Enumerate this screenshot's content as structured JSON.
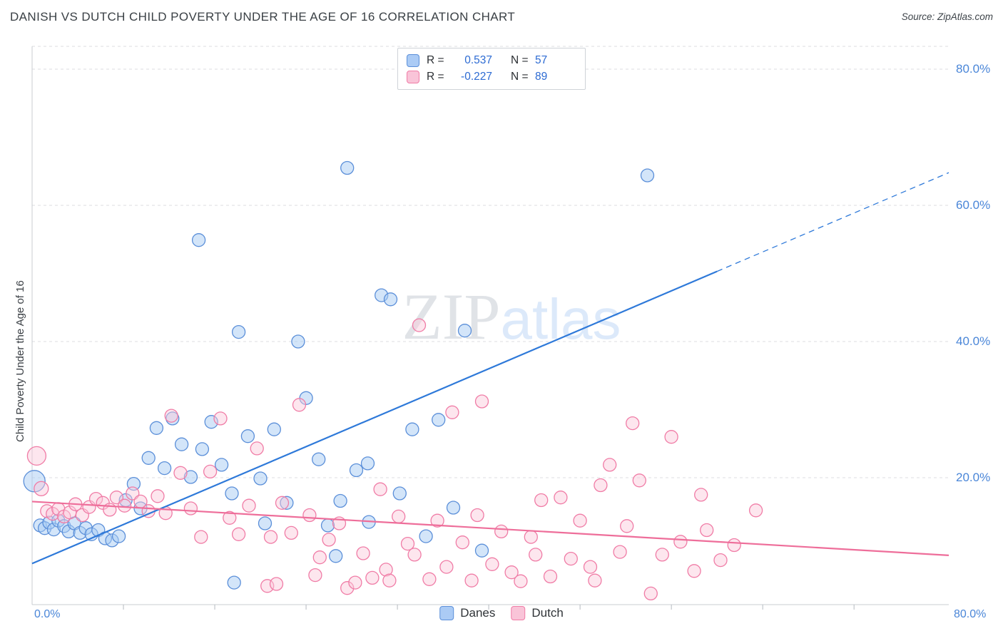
{
  "header": {
    "title": "DANISH VS DUTCH CHILD POVERTY UNDER THE AGE OF 16 CORRELATION CHART",
    "source": "Source: ZipAtlas.com"
  },
  "watermark": {
    "part1": "ZIP",
    "part2": "atlas"
  },
  "axes": {
    "y_label": "Child Poverty Under the Age of 16",
    "y_ticks": [
      "80.0%",
      "60.0%",
      "40.0%",
      "20.0%"
    ],
    "x_min_label": "0.0%",
    "x_max_label": "80.0%"
  },
  "legend_box": {
    "r_label": "R =",
    "n_label": "N ="
  },
  "chart_data": {
    "type": "scatter",
    "title": "Danish vs Dutch Child Poverty Under the Age of 16 Correlation Chart",
    "ylabel": "Child Poverty Under the Age of 16",
    "xlim": [
      0,
      80.3
    ],
    "ylim": [
      0,
      83.5
    ],
    "grid_y_values": [
      20,
      40,
      60,
      80
    ],
    "x_tick_values": [
      8,
      16,
      24,
      32,
      40,
      48,
      56,
      64,
      72
    ],
    "legend_position": "bottom-center",
    "grid": "dashed-horizontal",
    "series": [
      {
        "name": "Danes",
        "R": "0.537",
        "N": "57",
        "stroke": "#5b8fd9",
        "fill": "rgba(168, 204, 244, 0.5)",
        "points": [
          [
            0.2,
            19.5,
            15
          ],
          [
            0.7,
            13.0
          ],
          [
            1.1,
            12.6
          ],
          [
            1.5,
            13.4
          ],
          [
            1.9,
            12.4
          ],
          [
            2.3,
            13.7
          ],
          [
            2.8,
            12.9
          ],
          [
            3.2,
            12.1
          ],
          [
            3.7,
            13.3
          ],
          [
            4.2,
            11.9
          ],
          [
            4.7,
            12.6
          ],
          [
            5.2,
            11.7
          ],
          [
            5.8,
            12.3
          ],
          [
            6.4,
            11.1
          ],
          [
            7.0,
            10.8
          ],
          [
            7.6,
            11.4
          ],
          [
            8.2,
            16.7
          ],
          [
            8.9,
            19.1
          ],
          [
            9.5,
            15.5
          ],
          [
            10.2,
            22.9
          ],
          [
            10.9,
            27.3
          ],
          [
            11.6,
            21.4
          ],
          [
            12.3,
            28.7
          ],
          [
            13.1,
            24.9
          ],
          [
            13.9,
            20.1
          ],
          [
            14.6,
            54.9
          ],
          [
            14.9,
            24.2
          ],
          [
            15.7,
            28.2
          ],
          [
            16.6,
            21.9
          ],
          [
            17.5,
            17.7
          ],
          [
            17.7,
            4.6
          ],
          [
            18.1,
            41.4
          ],
          [
            18.9,
            26.1
          ],
          [
            20.0,
            19.9
          ],
          [
            20.4,
            13.3
          ],
          [
            21.2,
            27.1
          ],
          [
            22.3,
            16.3
          ],
          [
            23.3,
            40.0
          ],
          [
            24.0,
            31.7
          ],
          [
            25.1,
            22.7
          ],
          [
            25.9,
            13.0
          ],
          [
            26.6,
            8.5
          ],
          [
            27.0,
            16.6
          ],
          [
            27.6,
            65.5
          ],
          [
            28.4,
            21.1
          ],
          [
            29.4,
            22.1
          ],
          [
            29.5,
            13.5
          ],
          [
            30.6,
            46.8
          ],
          [
            31.4,
            46.2
          ],
          [
            32.2,
            17.7
          ],
          [
            33.3,
            27.1
          ],
          [
            34.5,
            11.4
          ],
          [
            35.6,
            28.5
          ],
          [
            36.9,
            15.6
          ],
          [
            37.9,
            41.6
          ],
          [
            39.4,
            9.3
          ],
          [
            53.9,
            64.4
          ]
        ]
      },
      {
        "name": "Dutch",
        "R": "-0.227",
        "N": "89",
        "stroke": "#f07ca6",
        "fill": "rgba(250, 199, 217, 0.45)",
        "points": [
          [
            0.4,
            23.2,
            13
          ],
          [
            0.8,
            18.4,
            10
          ],
          [
            1.3,
            15.1
          ],
          [
            1.8,
            14.7
          ],
          [
            2.3,
            15.4
          ],
          [
            2.8,
            14.3
          ],
          [
            3.3,
            14.9
          ],
          [
            3.8,
            16.1
          ],
          [
            4.4,
            14.5
          ],
          [
            5.0,
            15.7
          ],
          [
            5.6,
            16.9
          ],
          [
            6.2,
            16.3
          ],
          [
            6.8,
            15.3
          ],
          [
            7.4,
            17.1
          ],
          [
            8.1,
            15.9
          ],
          [
            8.8,
            17.7
          ],
          [
            9.5,
            16.5
          ],
          [
            10.2,
            15.1
          ],
          [
            11.0,
            17.3
          ],
          [
            11.7,
            14.8
          ],
          [
            12.2,
            29.1
          ],
          [
            13.0,
            20.7
          ],
          [
            13.9,
            15.5
          ],
          [
            14.8,
            11.3
          ],
          [
            15.6,
            20.9
          ],
          [
            16.5,
            28.7
          ],
          [
            17.3,
            14.1
          ],
          [
            18.1,
            11.7
          ],
          [
            19.0,
            15.9
          ],
          [
            19.7,
            24.3
          ],
          [
            20.6,
            4.1
          ],
          [
            20.9,
            11.3
          ],
          [
            21.4,
            4.4
          ],
          [
            21.9,
            16.3
          ],
          [
            22.7,
            11.9
          ],
          [
            23.4,
            30.7
          ],
          [
            24.3,
            14.5
          ],
          [
            24.8,
            5.7
          ],
          [
            25.2,
            8.3
          ],
          [
            26.0,
            10.9
          ],
          [
            26.9,
            13.3
          ],
          [
            27.6,
            3.8
          ],
          [
            28.3,
            4.6
          ],
          [
            29.0,
            8.9
          ],
          [
            29.8,
            5.3
          ],
          [
            30.5,
            18.3
          ],
          [
            31.0,
            6.5
          ],
          [
            31.3,
            4.9
          ],
          [
            32.1,
            14.3
          ],
          [
            32.9,
            10.3
          ],
          [
            33.5,
            8.7
          ],
          [
            33.9,
            42.4
          ],
          [
            34.8,
            5.1
          ],
          [
            35.5,
            13.7
          ],
          [
            36.3,
            6.9
          ],
          [
            36.8,
            29.6
          ],
          [
            37.7,
            10.5
          ],
          [
            38.5,
            4.9
          ],
          [
            39.0,
            14.5
          ],
          [
            39.4,
            31.2
          ],
          [
            40.3,
            7.3
          ],
          [
            41.1,
            12.1
          ],
          [
            42.0,
            6.1
          ],
          [
            42.8,
            4.8
          ],
          [
            43.7,
            11.3
          ],
          [
            44.1,
            8.7
          ],
          [
            44.6,
            16.7
          ],
          [
            45.4,
            5.5
          ],
          [
            46.3,
            17.1
          ],
          [
            47.2,
            8.1
          ],
          [
            48.0,
            13.7
          ],
          [
            48.9,
            6.9
          ],
          [
            49.3,
            4.9
          ],
          [
            49.8,
            18.9
          ],
          [
            50.6,
            21.9
          ],
          [
            51.5,
            9.1
          ],
          [
            52.1,
            12.9
          ],
          [
            52.6,
            28.0
          ],
          [
            53.2,
            19.6
          ],
          [
            54.2,
            3.0
          ],
          [
            55.2,
            8.7
          ],
          [
            56.0,
            26.0
          ],
          [
            56.8,
            10.6
          ],
          [
            58.0,
            6.3
          ],
          [
            58.6,
            17.5
          ],
          [
            59.1,
            12.3
          ],
          [
            60.3,
            7.9
          ],
          [
            61.5,
            10.1
          ],
          [
            63.4,
            15.2
          ]
        ]
      }
    ],
    "trend_lines": [
      {
        "series": "Danes",
        "color": "#2e79d9",
        "solid": [
          [
            0,
            7.4
          ],
          [
            60,
            50.3
          ]
        ],
        "dashed": [
          [
            60,
            50.3
          ],
          [
            80.3,
            64.8
          ]
        ]
      },
      {
        "series": "Dutch",
        "color": "#ee6e9a",
        "solid": [
          [
            0,
            16.5
          ],
          [
            80.3,
            8.6
          ]
        ]
      }
    ]
  }
}
